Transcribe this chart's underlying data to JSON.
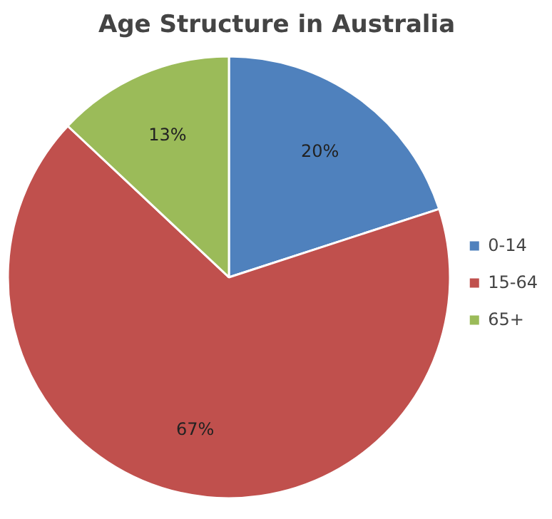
{
  "chart_data": {
    "type": "pie",
    "title": "Age Structure in Australia",
    "categories": [
      "0-14",
      "15-64",
      "65+"
    ],
    "values": [
      20,
      67,
      13
    ],
    "colors": [
      "#4f81bd",
      "#c0504d",
      "#9bbb59"
    ],
    "value_labels": [
      "20%",
      "67%",
      "13%"
    ],
    "legend": "right"
  }
}
